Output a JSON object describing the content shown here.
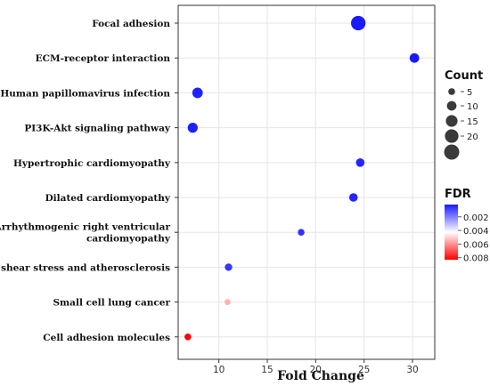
{
  "chart_data": {
    "type": "scatter",
    "xlabel": "Fold Change",
    "x_ticks": [
      "10",
      "15",
      "20",
      "25",
      "30"
    ],
    "xlim": [
      5.8,
      32.3
    ],
    "grid": true,
    "categories": [
      {
        "label_lines": [
          "Focal adhesion"
        ]
      },
      {
        "label_lines": [
          "ECM-receptor interaction"
        ]
      },
      {
        "label_lines": [
          "Human papillomavirus infection"
        ]
      },
      {
        "label_lines": [
          "PI3K-Akt signaling pathway"
        ]
      },
      {
        "label_lines": [
          "Hypertrophic cardiomyopathy"
        ]
      },
      {
        "label_lines": [
          "Dilated cardiomyopathy"
        ]
      },
      {
        "label_lines": [
          "Arrhythmogenic right ventricular",
          "cardiomyopathy"
        ]
      },
      {
        "label_lines": [
          "Fluid shear stress and atherosclerosis"
        ]
      },
      {
        "label_lines": [
          "Small cell lung cancer"
        ]
      },
      {
        "label_lines": [
          "Cell adhesion molecules"
        ]
      }
    ],
    "points": [
      {
        "category": 0,
        "x": 24.4,
        "count": 23,
        "fdr": 0.0001
      },
      {
        "category": 1,
        "x": 30.2,
        "count": 10,
        "fdr": 0.0002
      },
      {
        "category": 2,
        "x": 7.8,
        "count": 12,
        "fdr": 0.0003
      },
      {
        "category": 3,
        "x": 7.3,
        "count": 11,
        "fdr": 0.0003
      },
      {
        "category": 4,
        "x": 24.6,
        "count": 8,
        "fdr": 0.0004
      },
      {
        "category": 5,
        "x": 23.9,
        "count": 8,
        "fdr": 0.0004
      },
      {
        "category": 6,
        "x": 18.5,
        "count": 5,
        "fdr": 0.0006
      },
      {
        "category": 7,
        "x": 11.0,
        "count": 6,
        "fdr": 0.0007
      },
      {
        "category": 8,
        "x": 10.9,
        "count": 4,
        "fdr": 0.0055
      },
      {
        "category": 9,
        "x": 6.8,
        "count": 5,
        "fdr": 0.0082
      }
    ],
    "size_legend": {
      "title": "Count",
      "values": [
        5,
        10,
        15,
        20,
        25
      ],
      "labels": [
        "5",
        "10",
        "15",
        "20",
        ""
      ]
    },
    "color_legend": {
      "title": "FDR",
      "range": [
        0.0002,
        0.0083
      ],
      "tick_values": [
        0.002,
        0.004,
        0.006,
        0.008
      ],
      "tick_labels": [
        "0.002",
        "0.004",
        "0.006",
        "0.008"
      ],
      "colors": {
        "low": "#1a1aff",
        "mid": "#ffffff",
        "high": "#ff0000"
      }
    }
  }
}
